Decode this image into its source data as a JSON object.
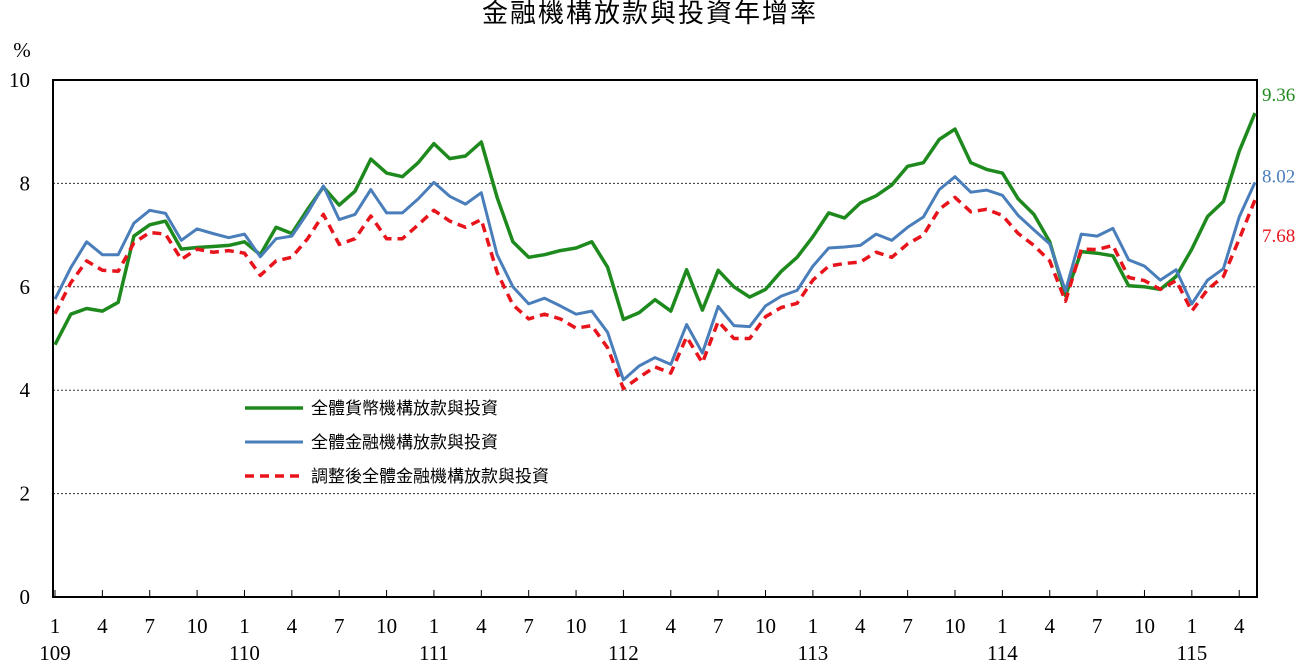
{
  "chart_data": {
    "type": "line",
    "title": "金融機構放款與投資年增率",
    "ylabel": "%",
    "xlabel": "",
    "ylim": [
      0,
      10
    ],
    "yticks": [
      "0",
      "2",
      "4",
      "6",
      "8",
      "10"
    ],
    "grid": true,
    "legend_position": "center-left",
    "x_tick_months": [
      "1",
      "4",
      "7",
      "10",
      "1",
      "4",
      "7",
      "10",
      "1",
      "4",
      "7",
      "10",
      "1",
      "4",
      "7",
      "10",
      "1",
      "4",
      "7",
      "10",
      "1",
      "4",
      "7",
      "10",
      "1",
      "4"
    ],
    "x_tick_index": [
      0,
      3,
      6,
      9,
      12,
      15,
      18,
      21,
      24,
      27,
      30,
      33,
      36,
      39,
      42,
      45,
      48,
      51,
      54,
      57,
      60,
      63,
      66,
      69,
      72,
      75
    ],
    "years": [
      {
        "label": "109",
        "index": 0
      },
      {
        "label": "110",
        "index": 12
      },
      {
        "label": "111",
        "index": 24
      },
      {
        "label": "112",
        "index": 36
      },
      {
        "label": "113",
        "index": 48
      },
      {
        "label": "114",
        "index": 60
      },
      {
        "label": "115",
        "index": 72
      }
    ],
    "series": [
      {
        "name": "全體貨幣機構放款與投資",
        "color": "#1e8a1e",
        "dash": "",
        "end_label": "9.36",
        "values": [
          4.88,
          5.47,
          5.58,
          5.53,
          5.7,
          6.98,
          7.2,
          7.27,
          6.73,
          6.76,
          6.78,
          6.8,
          6.87,
          6.62,
          7.15,
          7.03,
          7.5,
          7.93,
          7.58,
          7.85,
          8.47,
          8.2,
          8.13,
          8.4,
          8.77,
          8.48,
          8.53,
          8.8,
          7.73,
          6.87,
          6.57,
          6.62,
          6.7,
          6.75,
          6.87,
          6.38,
          5.37,
          5.5,
          5.75,
          5.53,
          6.33,
          5.55,
          6.32,
          6.0,
          5.8,
          5.95,
          6.3,
          6.57,
          6.97,
          7.43,
          7.33,
          7.62,
          7.76,
          7.97,
          8.33,
          8.4,
          8.85,
          9.05,
          8.4,
          8.27,
          8.2,
          7.7,
          7.4,
          6.87,
          5.83,
          6.68,
          6.65,
          6.6,
          6.02,
          6.0,
          5.95,
          6.2,
          6.73,
          7.36,
          7.65,
          8.62,
          9.36
        ]
      },
      {
        "name": "全體金融機構放款與投資",
        "color": "#4a7ebb",
        "dash": "",
        "end_label": "8.02",
        "values": [
          5.76,
          6.37,
          6.87,
          6.62,
          6.62,
          7.23,
          7.48,
          7.42,
          6.9,
          7.12,
          7.03,
          6.95,
          7.02,
          6.58,
          6.93,
          6.98,
          7.43,
          7.95,
          7.3,
          7.4,
          7.88,
          7.43,
          7.43,
          7.7,
          8.02,
          7.75,
          7.6,
          7.82,
          6.62,
          6.0,
          5.67,
          5.78,
          5.63,
          5.47,
          5.53,
          5.12,
          4.2,
          4.47,
          4.63,
          4.5,
          5.27,
          4.72,
          5.62,
          5.25,
          5.23,
          5.63,
          5.82,
          5.93,
          6.4,
          6.75,
          6.77,
          6.8,
          7.02,
          6.9,
          7.15,
          7.35,
          7.88,
          8.13,
          7.83,
          7.87,
          7.77,
          7.38,
          7.1,
          6.83,
          5.92,
          7.02,
          6.98,
          7.13,
          6.52,
          6.4,
          6.13,
          6.33,
          5.67,
          6.13,
          6.35,
          7.35,
          8.02
        ]
      },
      {
        "name": "調整後全體金融機構放款與投資",
        "color": "#e8141c",
        "dash": "9 6",
        "end_label": "7.68",
        "values": [
          5.48,
          6.08,
          6.5,
          6.32,
          6.3,
          6.85,
          7.05,
          7.02,
          6.53,
          6.73,
          6.67,
          6.7,
          6.65,
          6.22,
          6.5,
          6.57,
          6.93,
          7.4,
          6.82,
          6.93,
          7.37,
          6.93,
          6.93,
          7.2,
          7.48,
          7.27,
          7.15,
          7.3,
          6.28,
          5.65,
          5.38,
          5.47,
          5.38,
          5.2,
          5.25,
          4.82,
          4.03,
          4.25,
          4.45,
          4.33,
          5.03,
          4.53,
          5.33,
          5.0,
          5.0,
          5.42,
          5.6,
          5.68,
          6.13,
          6.4,
          6.45,
          6.48,
          6.67,
          6.57,
          6.83,
          7.0,
          7.5,
          7.73,
          7.45,
          7.5,
          7.38,
          7.03,
          6.8,
          6.5,
          5.72,
          6.73,
          6.72,
          6.8,
          6.18,
          6.12,
          5.95,
          6.12,
          5.53,
          5.95,
          6.2,
          6.92,
          7.68
        ]
      }
    ]
  }
}
